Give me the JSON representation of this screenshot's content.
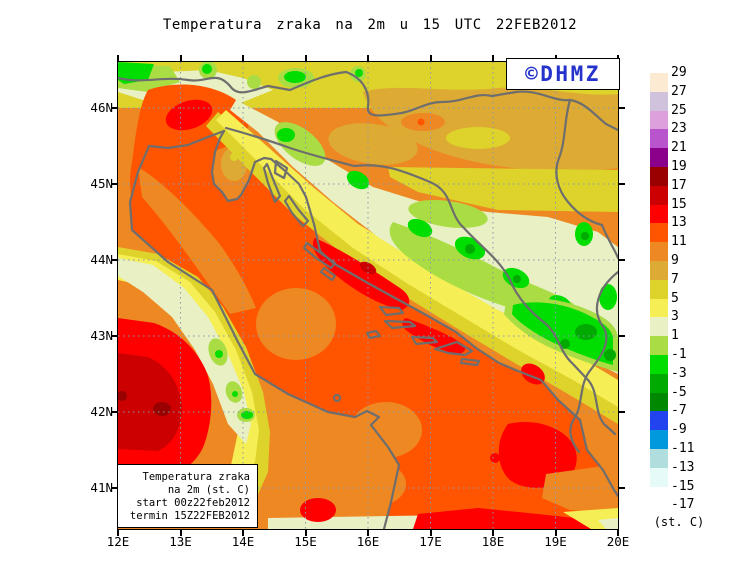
{
  "title": "Temperatura zraka na 2m u 15 UTC 22FEB2012",
  "watermark": "©DHMZ",
  "map": {
    "x_axis": {
      "labels": [
        "12E",
        "13E",
        "14E",
        "15E",
        "16E",
        "17E",
        "18E",
        "19E",
        "20E"
      ]
    },
    "y_axis": {
      "labels": [
        "46N",
        "45N",
        "44N",
        "43N",
        "42N",
        "41N"
      ]
    }
  },
  "legend_box": {
    "lines": [
      "Temperatura zraka",
      "na 2m (st. C)",
      "start 00z22feb2012",
      "termin 15Z22FEB2012"
    ]
  },
  "colorbar": {
    "unit_label": "(st. C)",
    "tick_labels": [
      "29",
      "27",
      "25",
      "23",
      "21",
      "19",
      "17",
      "15",
      "13",
      "11",
      "9",
      "7",
      "5",
      "3",
      "1",
      "-1",
      "-3",
      "-5",
      "-7",
      "-9",
      "-11",
      "-13",
      "-15",
      "-17"
    ],
    "colors": [
      "#FCEAD2",
      "#D0C2DC",
      "#DDA0DD",
      "#B855CC",
      "#8B008B",
      "#990000",
      "#CC0000",
      "#FF0000",
      "#FF5500",
      "#EE8822",
      "#DDAA33",
      "#DDD32A",
      "#F5EE55",
      "#E8F0C4",
      "#AADD44",
      "#00DD00",
      "#00AA00",
      "#008800",
      "#2244EE",
      "#0099DD",
      "#B0DDDD",
      "#E6FBF8",
      "#FFFFFF"
    ]
  },
  "colors": {
    "watermark_blue": "#2533CC",
    "frame_black": "#000000",
    "border_gray": "#6E6E6E",
    "grid_gray": "#8898B0"
  }
}
